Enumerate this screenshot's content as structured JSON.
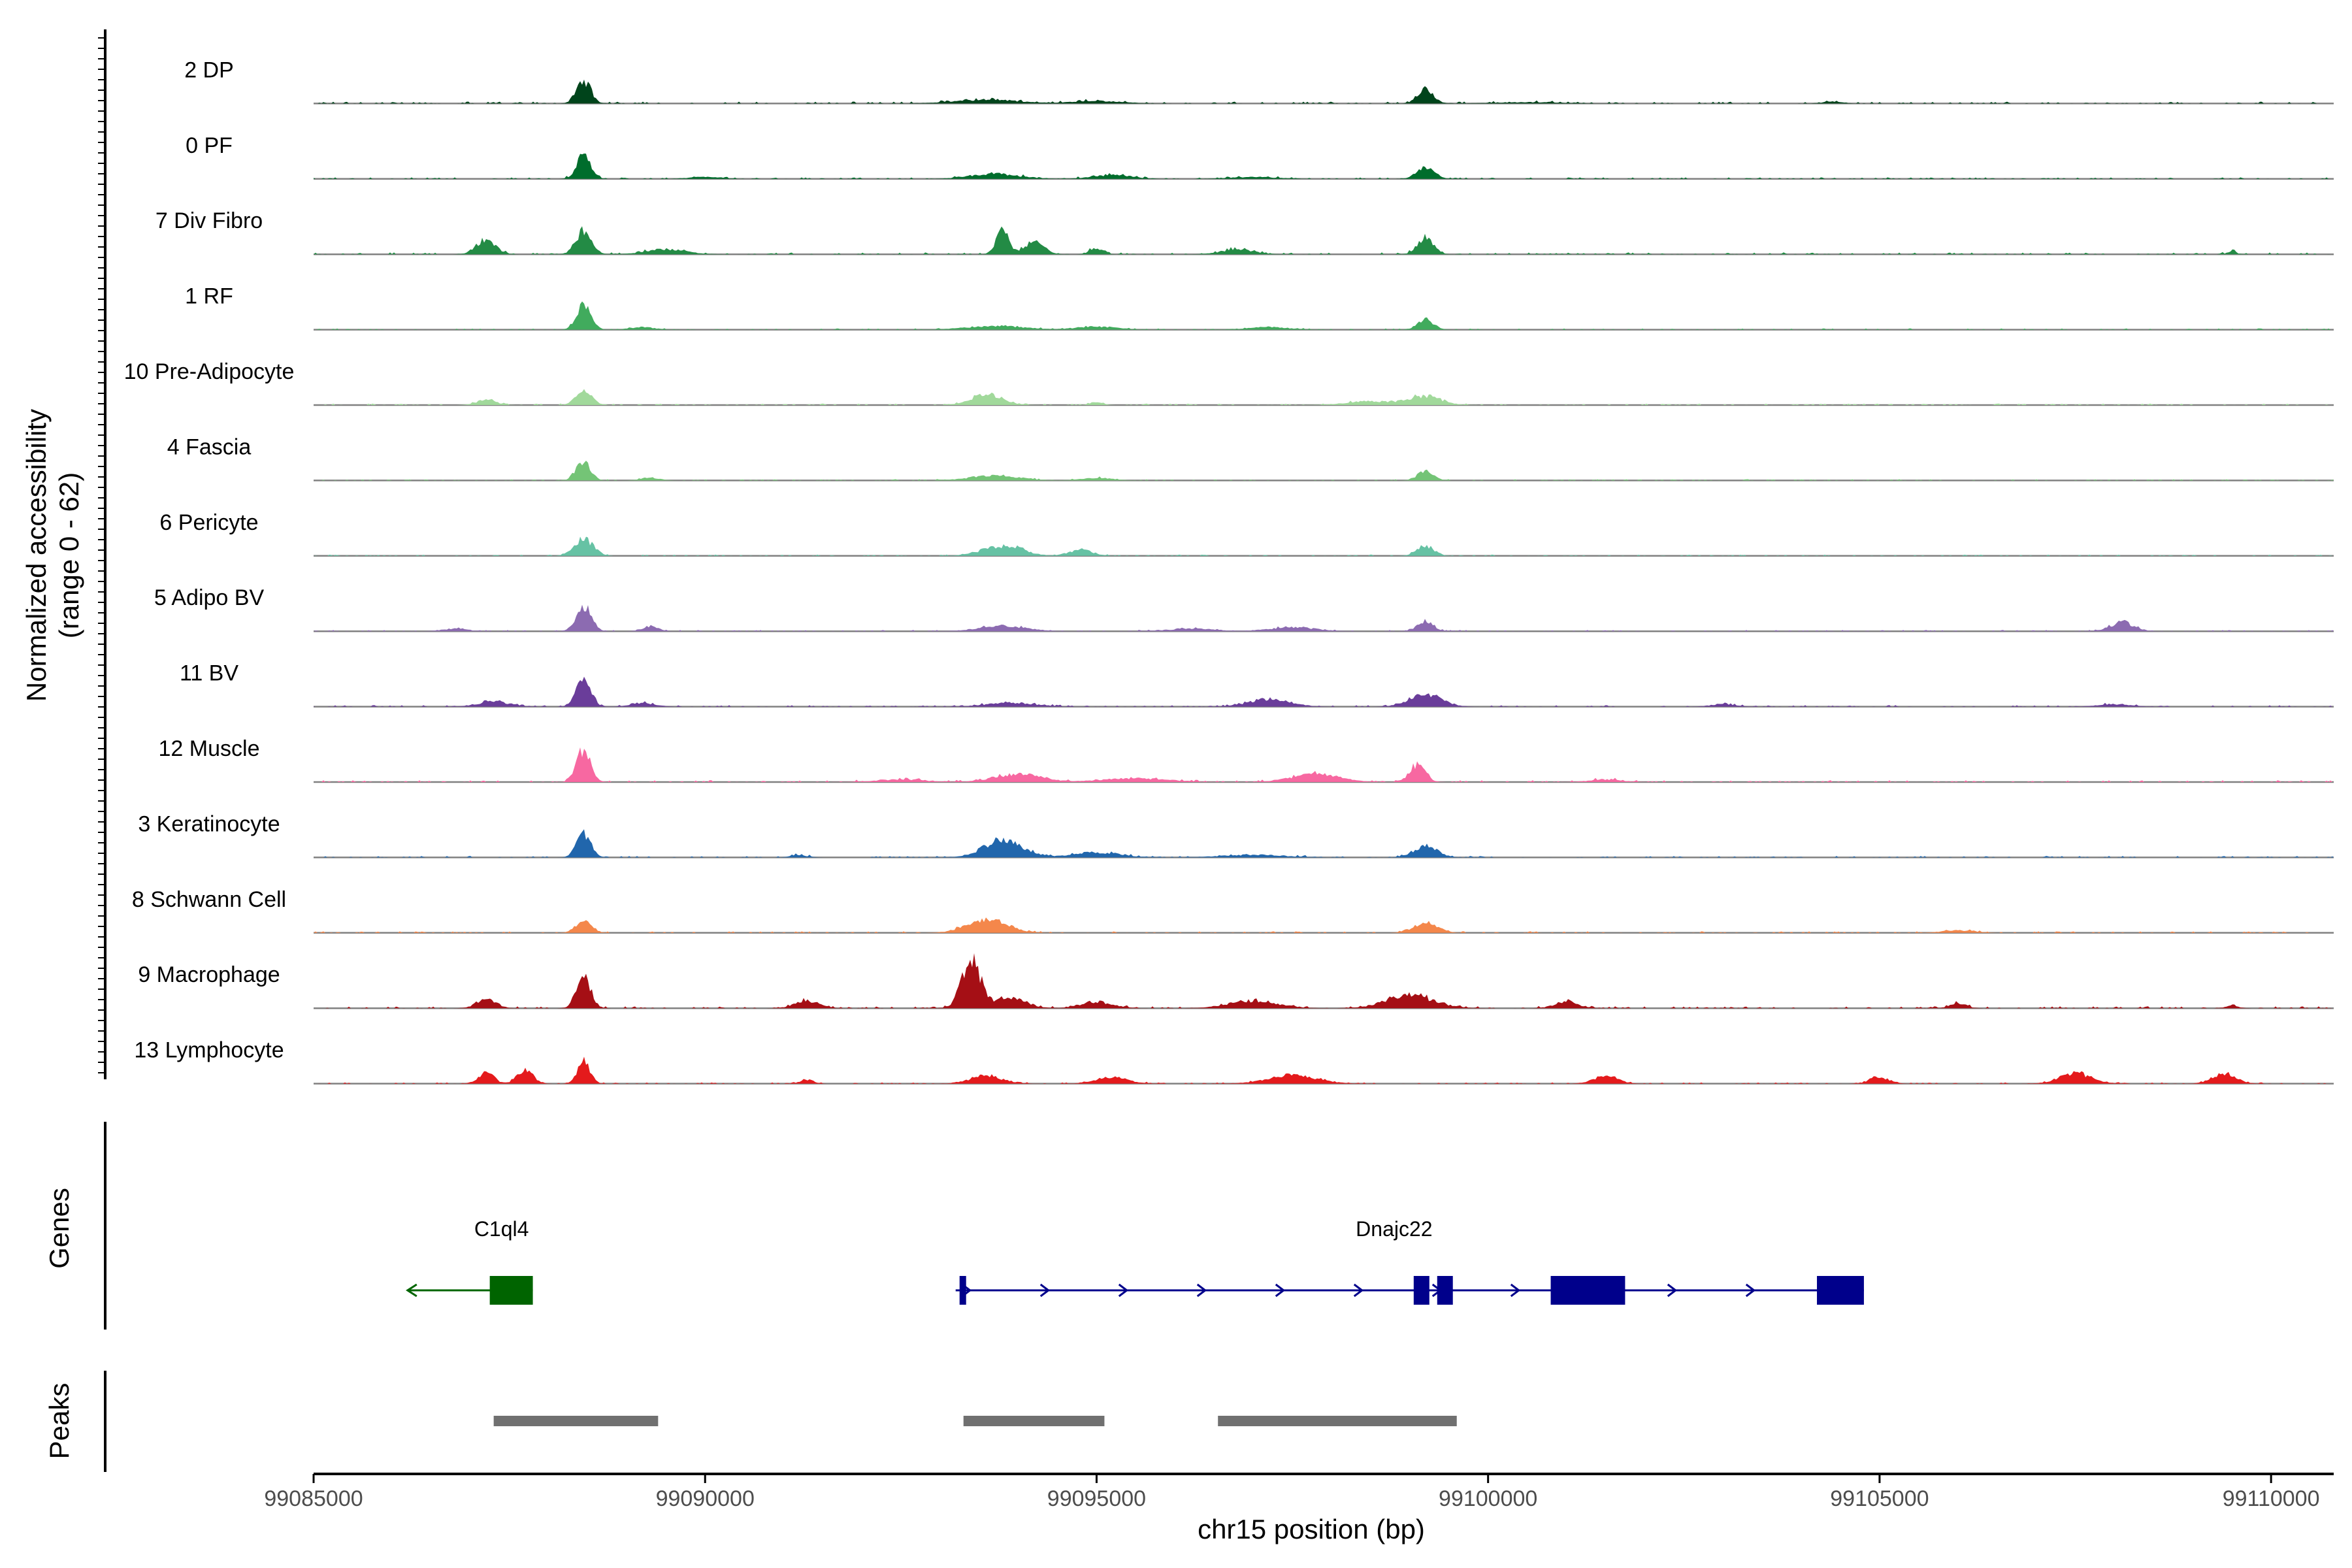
{
  "chart_data": {
    "type": "area",
    "title": "",
    "chromosome": "chr15",
    "xlabel": "chr15 position (bp)",
    "ylabel_line1": "Normalized accessibility",
    "ylabel_line2": "(range 0 - 62)",
    "y_range": [
      0,
      62
    ],
    "xlim": [
      99085000,
      99110800
    ],
    "x_ticks": [
      99085000,
      99090000,
      99095000,
      99100000,
      99105000,
      99110000
    ],
    "x_tick_labels": [
      "99085000",
      "99090000",
      "99095000",
      "99100000",
      "99105000",
      "99110000"
    ],
    "tracks": [
      {
        "name": "2 DP",
        "color": "#00441B",
        "peaks": [
          [
            99088450,
            18,
            90
          ],
          [
            99093600,
            3,
            400
          ],
          [
            99095000,
            2,
            300
          ],
          [
            99099200,
            11,
            100
          ],
          [
            99100500,
            1,
            400
          ],
          [
            99104400,
            1.5,
            120
          ]
        ],
        "noise": 1.5
      },
      {
        "name": "0 PF",
        "color": "#006D2C",
        "peaks": [
          [
            99088450,
            19,
            90
          ],
          [
            99090000,
            1.5,
            200
          ],
          [
            99093700,
            4,
            300
          ],
          [
            99095200,
            3,
            250
          ],
          [
            99097000,
            1.5,
            300
          ],
          [
            99099200,
            9,
            110
          ]
        ],
        "noise": 1.2
      },
      {
        "name": "7 Div Fibro",
        "color": "#238B45",
        "peaks": [
          [
            99087200,
            12,
            120
          ],
          [
            99088450,
            18,
            100
          ],
          [
            99089500,
            4,
            250
          ],
          [
            99093800,
            20,
            80
          ],
          [
            99094200,
            10,
            120
          ],
          [
            99095000,
            5,
            80
          ],
          [
            99096800,
            4,
            200
          ],
          [
            99099200,
            13,
            100
          ],
          [
            99109500,
            2,
            60
          ]
        ],
        "noise": 1.5
      },
      {
        "name": "1 RF",
        "color": "#41AB5D",
        "peaks": [
          [
            99088450,
            20,
            90
          ],
          [
            99089200,
            2,
            150
          ],
          [
            99093700,
            3,
            350
          ],
          [
            99095000,
            2.5,
            250
          ],
          [
            99097200,
            2,
            250
          ],
          [
            99099200,
            8,
            100
          ]
        ],
        "noise": 1.0
      },
      {
        "name": "10 Pre-Adipocyte",
        "color": "#A1D99B",
        "peaks": [
          [
            99087200,
            4,
            120
          ],
          [
            99088450,
            12,
            100
          ],
          [
            99093600,
            8,
            200
          ],
          [
            99095000,
            2,
            80
          ],
          [
            99098500,
            3,
            300
          ],
          [
            99099200,
            7,
            200
          ]
        ],
        "noise": 1.2
      },
      {
        "name": "4 Fascia",
        "color": "#74C476",
        "peaks": [
          [
            99088450,
            15,
            90
          ],
          [
            99089300,
            2,
            120
          ],
          [
            99093700,
            4,
            300
          ],
          [
            99095000,
            2,
            200
          ],
          [
            99099200,
            7,
            100
          ]
        ],
        "noise": 1.0
      },
      {
        "name": "6 Pericyte",
        "color": "#66C2A4",
        "peaks": [
          [
            99088450,
            13,
            120
          ],
          [
            99093800,
            8,
            250
          ],
          [
            99094800,
            5,
            150
          ],
          [
            99099200,
            8,
            110
          ]
        ],
        "noise": 1.0
      },
      {
        "name": "5 Adipo BV",
        "color": "#8C6BB1",
        "peaks": [
          [
            99086800,
            2,
            150
          ],
          [
            99088450,
            19,
            100
          ],
          [
            99089300,
            4,
            100
          ],
          [
            99093800,
            4,
            300
          ],
          [
            99096200,
            2,
            300
          ],
          [
            99097500,
            3,
            300
          ],
          [
            99099200,
            8,
            100
          ],
          [
            99108100,
            7,
            150
          ]
        ],
        "noise": 1.0
      },
      {
        "name": "11 BV",
        "color": "#6A3D9A",
        "peaks": [
          [
            99087300,
            4,
            200
          ],
          [
            99088450,
            22,
            90
          ],
          [
            99089200,
            3,
            150
          ],
          [
            99093900,
            3,
            300
          ],
          [
            99097200,
            6,
            250
          ],
          [
            99099200,
            10,
            200
          ],
          [
            99103000,
            2,
            150
          ],
          [
            99108000,
            2,
            200
          ]
        ],
        "noise": 1.2
      },
      {
        "name": "12 Muscle",
        "color": "#F768A1",
        "peaks": [
          [
            99088450,
            25,
            90
          ],
          [
            99092500,
            2,
            300
          ],
          [
            99094000,
            6,
            300
          ],
          [
            99095500,
            3,
            400
          ],
          [
            99097800,
            6,
            300
          ],
          [
            99099100,
            14,
            100
          ],
          [
            99101500,
            2,
            200
          ]
        ],
        "noise": 1.5
      },
      {
        "name": "3 Keratinocyte",
        "color": "#2166AC",
        "peaks": [
          [
            99088450,
            18,
            90
          ],
          [
            99091200,
            2,
            100
          ],
          [
            99093800,
            13,
            250
          ],
          [
            99095000,
            4,
            300
          ],
          [
            99097000,
            2,
            400
          ],
          [
            99099200,
            9,
            150
          ]
        ],
        "noise": 1.2
      },
      {
        "name": "8 Schwann Cell",
        "color": "#F4874B",
        "peaks": [
          [
            99088450,
            10,
            100
          ],
          [
            99093600,
            11,
            250
          ],
          [
            99099200,
            8,
            150
          ],
          [
            99106000,
            2,
            200
          ]
        ],
        "noise": 1.2
      },
      {
        "name": "9 Macrophage",
        "color": "#A50F15",
        "peaks": [
          [
            99087200,
            7,
            120
          ],
          [
            99088450,
            25,
            90
          ],
          [
            99091300,
            6,
            150
          ],
          [
            99093400,
            37,
            120
          ],
          [
            99093900,
            8,
            200
          ],
          [
            99095000,
            5,
            200
          ],
          [
            99097000,
            6,
            300
          ],
          [
            99099000,
            10,
            300
          ],
          [
            99101000,
            5,
            150
          ],
          [
            99106000,
            4,
            100
          ],
          [
            99109500,
            2,
            80
          ]
        ],
        "noise": 1.5
      },
      {
        "name": "13 Lymphocyte",
        "color": "#E41A1C",
        "peaks": [
          [
            99087200,
            8,
            100
          ],
          [
            99087700,
            10,
            100
          ],
          [
            99088450,
            17,
            80
          ],
          [
            99091300,
            3,
            80
          ],
          [
            99093600,
            6,
            200
          ],
          [
            99095200,
            5,
            200
          ],
          [
            99097500,
            7,
            300
          ],
          [
            99101500,
            6,
            150
          ],
          [
            99105000,
            5,
            120
          ],
          [
            99107500,
            8,
            200
          ],
          [
            99109400,
            8,
            150
          ]
        ],
        "noise": 1.0
      }
    ],
    "genes_label": "Genes",
    "genes": [
      {
        "name": "C1ql4",
        "strand": "-",
        "start": 99086200,
        "end": 99087800,
        "color": "#006400",
        "exons": [
          [
            99087250,
            99087800
          ]
        ],
        "label_x": 99087400
      },
      {
        "name": "Dnajc22",
        "strand": "+",
        "start": 99093200,
        "end": 99104800,
        "color": "#00008B",
        "exons": [
          [
            99093250,
            99093330
          ],
          [
            99099050,
            99099250
          ],
          [
            99099350,
            99099550
          ],
          [
            99100800,
            99101750
          ],
          [
            99104200,
            99104800
          ]
        ],
        "label_x": 99098800
      }
    ],
    "peaks_label": "Peaks",
    "peaks": [
      [
        99087300,
        99089400
      ],
      [
        99093300,
        99095100
      ],
      [
        99096550,
        99099600
      ]
    ],
    "peak_color": "#707070"
  }
}
